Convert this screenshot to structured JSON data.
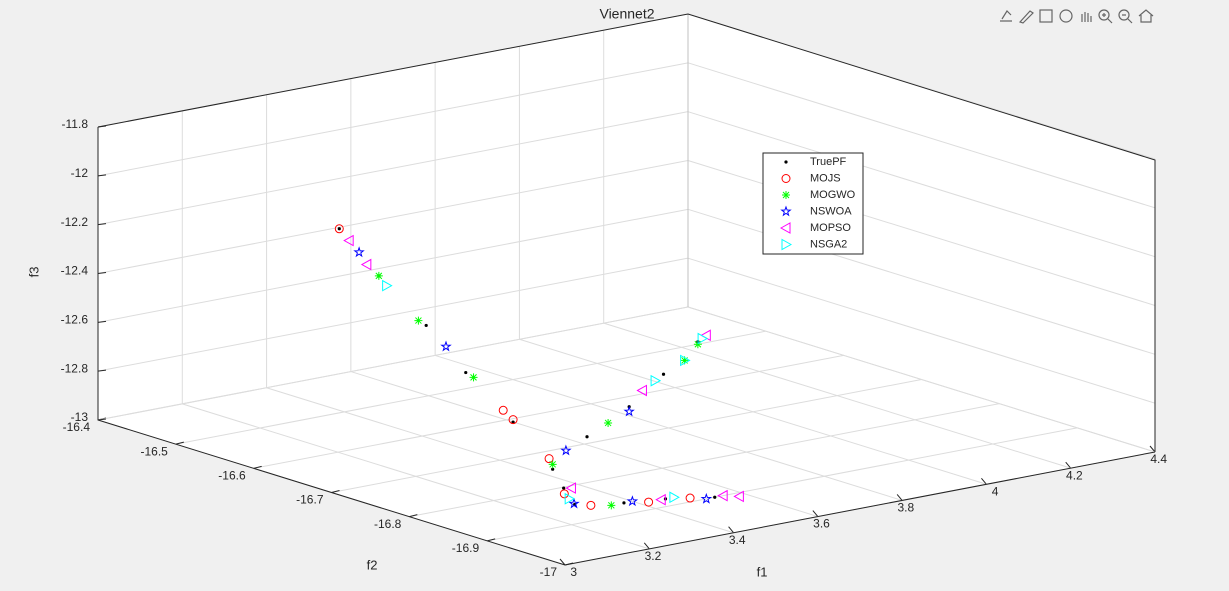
{
  "chart_data": {
    "type": "scatter3d",
    "title": "Viennet2",
    "xlabel": "f1",
    "ylabel": "f2",
    "zlabel": "f3",
    "xlim": [
      3,
      4.4
    ],
    "xticks": [
      3,
      3.2,
      3.4,
      3.6,
      3.8,
      4,
      4.2,
      4.4
    ],
    "ylim": [
      -17,
      -16.4
    ],
    "yticks": [
      -17,
      -16.9,
      -16.8,
      -16.7,
      -16.6,
      -16.5,
      -16.4
    ],
    "zlim": [
      -13,
      -11.8
    ],
    "zticks": [
      -13,
      -12.8,
      -12.6,
      -12.4,
      -12.2,
      -12,
      -11.8
    ],
    "grid": true,
    "legend": "northeast",
    "series": [
      {
        "name": "TruePF",
        "color": "#000000",
        "marker": ".",
        "x": [
          3.0,
          3.02,
          3.04,
          3.06,
          3.08,
          3.1,
          3.2,
          3.3,
          3.4,
          3.5,
          3.2,
          3.3,
          3.38,
          3.46,
          3.54
        ],
        "y": [
          -16.71,
          -16.75,
          -16.8,
          -16.84,
          -16.89,
          -16.93,
          -16.92,
          -16.92,
          -16.91,
          -16.9,
          -16.89,
          -16.85,
          -16.87,
          -16.88,
          -16.9
        ],
        "z": [
          -11.91,
          -12.07,
          -12.23,
          -12.39,
          -12.55,
          -12.71,
          -12.62,
          -12.53,
          -12.44,
          -12.35,
          -12.86,
          -13.0,
          -13.0,
          -13.0,
          -13.0
        ]
      },
      {
        "name": "MOJS",
        "color": "#ff0000",
        "marker": "o",
        "x": [
          3.0,
          3.075,
          3.08,
          3.11,
          3.22,
          3.32,
          3.42,
          3.5
        ],
        "y": [
          -16.71,
          -16.88,
          -16.89,
          -16.92,
          -16.88,
          -16.86,
          -16.88,
          -16.89
        ],
        "z": [
          -11.91,
          -12.51,
          -12.54,
          -12.68,
          -12.9,
          -13.0,
          -13.0,
          -13.0
        ]
      },
      {
        "name": "MOGWO",
        "color": "#00ff00",
        "marker": "*",
        "x": [
          3.02,
          3.04,
          3.06,
          3.1,
          3.25,
          3.45,
          3.5,
          3.35
        ],
        "y": [
          -16.75,
          -16.79,
          -16.85,
          -16.93,
          -16.92,
          -16.91,
          -16.9,
          -16.87
        ],
        "z": [
          -12.07,
          -12.22,
          -12.4,
          -12.69,
          -12.58,
          -12.4,
          -12.36,
          -13.0
        ]
      },
      {
        "name": "NSWOA",
        "color": "#0000ff",
        "marker": "p",
        "x": [
          3.01,
          3.05,
          3.15,
          3.28,
          3.4,
          3.52,
          3.3
        ],
        "y": [
          -16.73,
          -16.82,
          -16.92,
          -16.86,
          -16.87,
          -16.9,
          -16.92
        ],
        "z": [
          -11.99,
          -12.3,
          -12.66,
          -12.98,
          -13.0,
          -13.0,
          -12.55
        ]
      },
      {
        "name": "MOPSO",
        "color": "#ff00ff",
        "marker": "<",
        "x": [
          3.005,
          3.01,
          3.52,
          3.35,
          3.2,
          3.45,
          3.56,
          3.58
        ],
        "y": [
          -16.72,
          -16.74,
          -16.9,
          -16.91,
          -16.9,
          -16.88,
          -16.9,
          -16.91
        ],
        "z": [
          -11.95,
          -12.03,
          -12.33,
          -12.49,
          -12.85,
          -13.0,
          -13.0,
          -13.0
        ]
      },
      {
        "name": "NSGA2",
        "color": "#00ffff",
        "marker": ">",
        "x": [
          3.51,
          3.45,
          3.38,
          3.02,
          3.48,
          3.25
        ],
        "y": [
          -16.9,
          -16.91,
          -16.91,
          -16.76,
          -16.88,
          -16.87
        ],
        "z": [
          -12.34,
          -12.4,
          -12.46,
          -12.1,
          -13.0,
          -12.94
        ]
      }
    ]
  }
}
